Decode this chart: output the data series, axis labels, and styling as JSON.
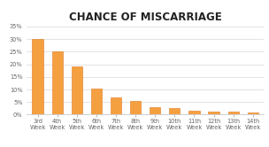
{
  "categories": [
    "3rd\nWeek",
    "4th\nWeek",
    "5th\nWeek",
    "6th\nWeek",
    "7th\nWeek",
    "8th\nWeek",
    "9th\nWeek",
    "10th\nWeek",
    "11th\nWeek",
    "12th\nWeek",
    "13th\nWeek",
    "14th\nWeek"
  ],
  "values": [
    0.3,
    0.25,
    0.19,
    0.105,
    0.07,
    0.055,
    0.03,
    0.028,
    0.016,
    0.012,
    0.011,
    0.007
  ],
  "bar_color": "#F5A040",
  "bar_edge_color": "#E07820",
  "title": "CHANCE OF MISCARRIAGE",
  "title_fontsize": 8.5,
  "title_fontweight": "bold",
  "ylim": [
    0,
    0.35
  ],
  "yticks": [
    0.0,
    0.05,
    0.1,
    0.15,
    0.2,
    0.25,
    0.3,
    0.35
  ],
  "ytick_labels": [
    "0%",
    "5%",
    "10%",
    "15%",
    "20%",
    "25%",
    "30%",
    "35%"
  ],
  "background_color": "#ffffff",
  "grid_color": "#d8d8d8",
  "tick_label_fontsize": 4.8,
  "title_color": "#222222",
  "bar_width": 0.55
}
